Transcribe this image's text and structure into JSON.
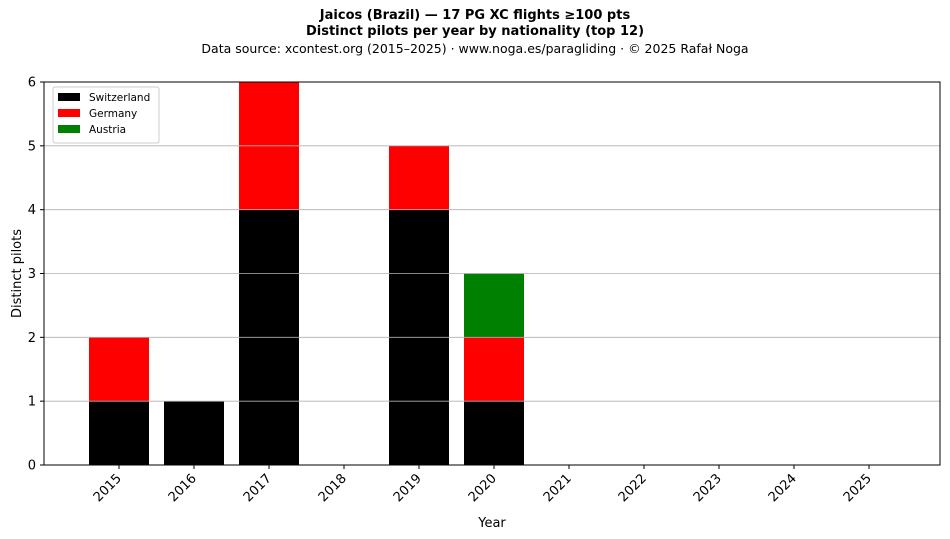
{
  "chart_data": {
    "type": "bar",
    "stacked": true,
    "title": "Jaicos (Brazil)  —  17 PG XC flights ≥100 pts",
    "subtitle": "Distinct pilots per year by nationality (top 12)",
    "source": "Data source: xcontest.org (2015–2025)  ·  www.noga.es/paragliding  ·  © 2025 Rafał Noga",
    "xlabel": "Year",
    "ylabel": "Distinct pilots",
    "ylim": [
      0,
      6
    ],
    "yticks": [
      0,
      1,
      2,
      3,
      4,
      5,
      6
    ],
    "grid": "horizontal",
    "legend_position": "top-left",
    "categories": [
      "2015",
      "2016",
      "2017",
      "2018",
      "2019",
      "2020",
      "2021",
      "2022",
      "2023",
      "2024",
      "2025"
    ],
    "series": [
      {
        "name": "Switzerland",
        "color": "#000000",
        "values": [
          1,
          1,
          4,
          0,
          4,
          1,
          0,
          0,
          0,
          0,
          0
        ]
      },
      {
        "name": "Germany",
        "color": "#ff0000",
        "values": [
          1,
          0,
          2,
          0,
          1,
          1,
          0,
          0,
          0,
          0,
          0
        ]
      },
      {
        "name": "Austria",
        "color": "#008000",
        "values": [
          0,
          0,
          0,
          0,
          0,
          1,
          0,
          0,
          0,
          0,
          0
        ]
      }
    ]
  }
}
